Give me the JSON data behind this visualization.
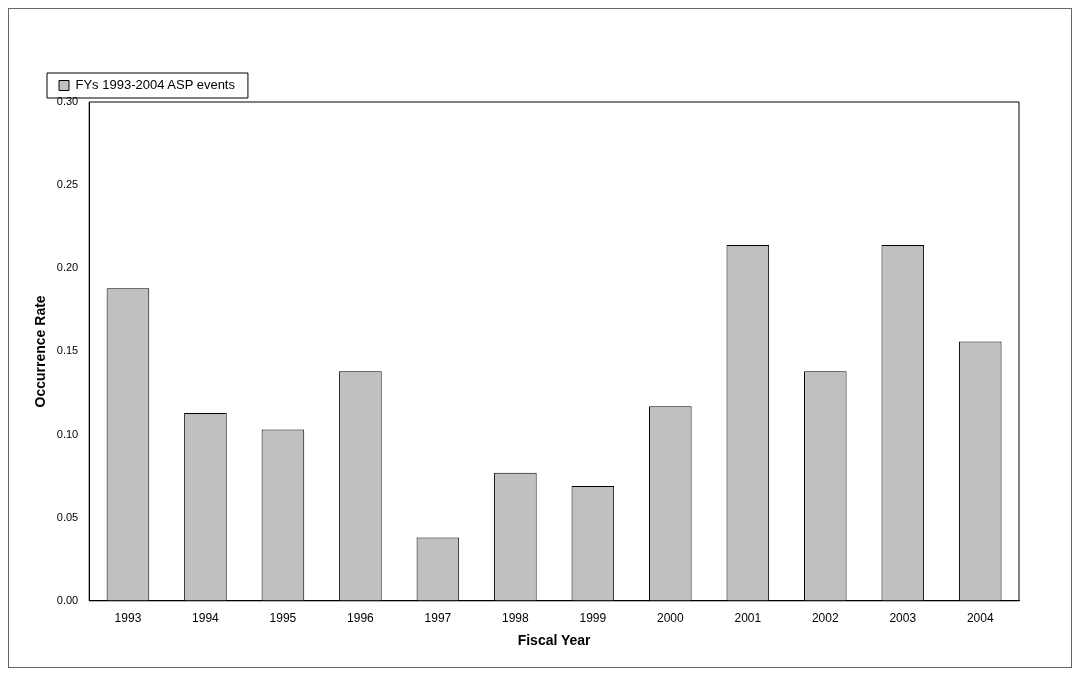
{
  "chart_data": {
    "type": "bar",
    "xlabel": "Fiscal Year",
    "ylabel": "Occurrence Rate",
    "categories": [
      "1993",
      "1994",
      "1995",
      "1996",
      "1997",
      "1998",
      "1999",
      "2000",
      "2001",
      "2002",
      "2003",
      "2004"
    ],
    "series": [
      {
        "name": "FYs 1993-2004 ASP events",
        "color": "#c0c0c0",
        "values": [
          0.188,
          0.113,
          0.103,
          0.138,
          0.038,
          0.077,
          0.069,
          0.117,
          0.214,
          0.138,
          0.214,
          0.156
        ]
      }
    ],
    "ylim": [
      0,
      0.3
    ],
    "yticks": [
      {
        "value": 0,
        "label": "0.00"
      },
      {
        "value": 0.05,
        "label": "0.05"
      },
      {
        "value": 0.1,
        "label": "0.10"
      },
      {
        "value": 0.15,
        "label": "0.15"
      },
      {
        "value": 0.2,
        "label": "0.20"
      },
      {
        "value": 0.25,
        "label": "0.25"
      },
      {
        "value": 0.3,
        "label": "0.30"
      }
    ],
    "grid": false,
    "legend": "top"
  }
}
